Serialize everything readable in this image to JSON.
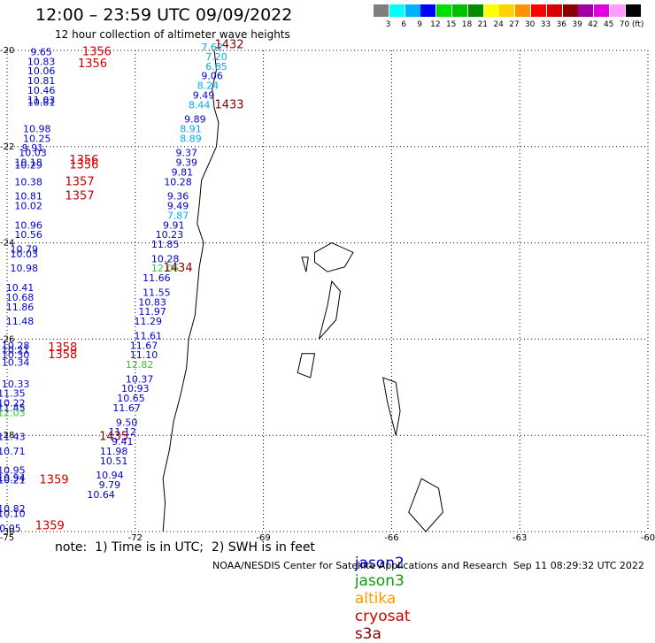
{
  "header": {
    "title": "12:00 – 23:59 UTC 09/09/2022",
    "subtitle": "12 hour collection of altimeter wave heights"
  },
  "legend": {
    "unit": "(ft)",
    "bins": [
      {
        "label": "3",
        "color": "#7f7f7f"
      },
      {
        "label": "6",
        "color": "#00ffff"
      },
      {
        "label": "9",
        "color": "#00b2ff"
      },
      {
        "label": "12",
        "color": "#0000ff"
      },
      {
        "label": "15",
        "color": "#00e000"
      },
      {
        "label": "18",
        "color": "#00c000"
      },
      {
        "label": "21",
        "color": "#008c00"
      },
      {
        "label": "24",
        "color": "#ffff00"
      },
      {
        "label": "27",
        "color": "#ffd200"
      },
      {
        "label": "30",
        "color": "#ff9400"
      },
      {
        "label": "33",
        "color": "#ff0000"
      },
      {
        "label": "36",
        "color": "#d80000"
      },
      {
        "label": "39",
        "color": "#8a0000"
      },
      {
        "label": "42",
        "color": "#a000a0"
      },
      {
        "label": "45",
        "color": "#e000e0"
      },
      {
        "label": "70",
        "color": "#ff9cff"
      },
      {
        "label": "",
        "color": "#000000"
      }
    ]
  },
  "map": {
    "lon_ticks": [
      "-75",
      "-72",
      "-69",
      "-66",
      "-63",
      "-60"
    ],
    "lat_ticks": [
      "-20",
      "-22",
      "-24",
      "-26",
      "-28",
      "-30"
    ],
    "extent": {
      "lon": [
        -75,
        -60
      ],
      "lat": [
        -30,
        -20
      ]
    },
    "grid": "dotted",
    "colors": {
      "jason2": "#0000cc",
      "jason3": "#119911",
      "altika": "#ff9900",
      "cryosat": "#cc0000",
      "s3a": "#880000",
      "light": "#00aaff",
      "green_light": "#33cc33"
    },
    "wave_labels": [
      {
        "text": "7.62",
        "lon": -70.2,
        "lat": -20.0,
        "c": "light"
      },
      {
        "text": "7.20",
        "lon": -70.1,
        "lat": -20.2,
        "c": "light"
      },
      {
        "text": "6.85",
        "lon": -70.1,
        "lat": -20.4,
        "c": "light"
      },
      {
        "text": "9.06",
        "lon": -70.2,
        "lat": -20.6,
        "c": "jason2"
      },
      {
        "text": "8.24",
        "lon": -70.3,
        "lat": -20.8,
        "c": "light"
      },
      {
        "text": "9.49",
        "lon": -70.4,
        "lat": -21.0,
        "c": "jason2"
      },
      {
        "text": "8.44",
        "lon": -70.5,
        "lat": -21.2,
        "c": "light"
      },
      {
        "text": "9.89",
        "lon": -70.6,
        "lat": -21.5,
        "c": "jason2"
      },
      {
        "text": "8.91",
        "lon": -70.7,
        "lat": -21.7,
        "c": "light"
      },
      {
        "text": "8.89",
        "lon": -70.7,
        "lat": -21.9,
        "c": "light"
      },
      {
        "text": "9.37",
        "lon": -70.8,
        "lat": -22.2,
        "c": "jason2"
      },
      {
        "text": "9.39",
        "lon": -70.8,
        "lat": -22.4,
        "c": "jason2"
      },
      {
        "text": "9.81",
        "lon": -70.9,
        "lat": -22.6,
        "c": "jason2"
      },
      {
        "text": "10.28",
        "lon": -71.0,
        "lat": -22.8,
        "c": "jason2"
      },
      {
        "text": "9.36",
        "lon": -71.0,
        "lat": -23.1,
        "c": "jason2"
      },
      {
        "text": "9.49",
        "lon": -71.0,
        "lat": -23.3,
        "c": "jason2"
      },
      {
        "text": "7.87",
        "lon": -71.0,
        "lat": -23.5,
        "c": "light"
      },
      {
        "text": "9.91",
        "lon": -71.1,
        "lat": -23.7,
        "c": "jason2"
      },
      {
        "text": "10.23",
        "lon": -71.2,
        "lat": -23.9,
        "c": "jason2"
      },
      {
        "text": "11.85",
        "lon": -71.3,
        "lat": -24.1,
        "c": "jason2"
      },
      {
        "text": "10.28",
        "lon": -71.3,
        "lat": -24.4,
        "c": "jason2"
      },
      {
        "text": "12.06",
        "lon": -71.3,
        "lat": -24.6,
        "c": "green_light"
      },
      {
        "text": "11.66",
        "lon": -71.5,
        "lat": -24.8,
        "c": "jason2"
      },
      {
        "text": "11.55",
        "lon": -71.5,
        "lat": -25.1,
        "c": "jason2"
      },
      {
        "text": "10.83",
        "lon": -71.6,
        "lat": -25.3,
        "c": "jason2"
      },
      {
        "text": "11.97",
        "lon": -71.6,
        "lat": -25.5,
        "c": "jason2"
      },
      {
        "text": "11.29",
        "lon": -71.7,
        "lat": -25.7,
        "c": "jason2"
      },
      {
        "text": "11.61",
        "lon": -71.7,
        "lat": -26.0,
        "c": "jason2"
      },
      {
        "text": "11.67",
        "lon": -71.8,
        "lat": -26.2,
        "c": "jason2"
      },
      {
        "text": "11.10",
        "lon": -71.8,
        "lat": -26.4,
        "c": "jason2"
      },
      {
        "text": "12.82",
        "lon": -71.9,
        "lat": -26.6,
        "c": "green_light"
      },
      {
        "text": "10.37",
        "lon": -71.9,
        "lat": -26.9,
        "c": "jason2"
      },
      {
        "text": "10.93",
        "lon": -72.0,
        "lat": -27.1,
        "c": "jason2"
      },
      {
        "text": "10.65",
        "lon": -72.1,
        "lat": -27.3,
        "c": "jason2"
      },
      {
        "text": "11.67",
        "lon": -72.2,
        "lat": -27.5,
        "c": "jason2"
      },
      {
        "text": "9.50",
        "lon": -72.2,
        "lat": -27.8,
        "c": "jason2"
      },
      {
        "text": "11.12",
        "lon": -72.3,
        "lat": -28.0,
        "c": "jason2"
      },
      {
        "text": "9.41",
        "lon": -72.3,
        "lat": -28.2,
        "c": "jason2"
      },
      {
        "text": "11.98",
        "lon": -72.5,
        "lat": -28.4,
        "c": "jason2"
      },
      {
        "text": "10.51",
        "lon": -72.5,
        "lat": -28.6,
        "c": "jason2"
      },
      {
        "text": "10.94",
        "lon": -72.6,
        "lat": -28.9,
        "c": "jason2"
      },
      {
        "text": "9.79",
        "lon": -72.6,
        "lat": -29.1,
        "c": "jason2"
      },
      {
        "text": "10.64",
        "lon": -72.8,
        "lat": -29.3,
        "c": "jason2"
      },
      {
        "text": "9.65",
        "lon": -74.2,
        "lat": -20.1,
        "c": "jason2"
      },
      {
        "text": "10.83",
        "lon": -74.2,
        "lat": -20.3,
        "c": "jason2"
      },
      {
        "text": "10.06",
        "lon": -74.2,
        "lat": -20.5,
        "c": "jason2"
      },
      {
        "text": "10.81",
        "lon": -74.2,
        "lat": -20.7,
        "c": "jason2"
      },
      {
        "text": "10.46",
        "lon": -74.2,
        "lat": -20.9,
        "c": "jason2"
      },
      {
        "text": "11.03",
        "lon": -74.2,
        "lat": -21.1,
        "c": "jason2"
      },
      {
        "text": "10.81",
        "lon": -74.2,
        "lat": -21.15,
        "c": "jason2"
      },
      {
        "text": "10.98",
        "lon": -74.3,
        "lat": -21.7,
        "c": "jason2"
      },
      {
        "text": "10.25",
        "lon": -74.3,
        "lat": -21.9,
        "c": "jason2"
      },
      {
        "text": "9.91",
        "lon": -74.4,
        "lat": -22.1,
        "c": "jason2"
      },
      {
        "text": "10.03",
        "lon": -74.4,
        "lat": -22.2,
        "c": "jason2"
      },
      {
        "text": "10.18",
        "lon": -74.5,
        "lat": -22.4,
        "c": "jason2"
      },
      {
        "text": "10.29",
        "lon": -74.5,
        "lat": -22.45,
        "c": "jason2"
      },
      {
        "text": "10.38",
        "lon": -74.5,
        "lat": -22.8,
        "c": "jason2"
      },
      {
        "text": "10.81",
        "lon": -74.5,
        "lat": -23.1,
        "c": "jason2"
      },
      {
        "text": "10.02",
        "lon": -74.5,
        "lat": -23.3,
        "c": "jason2"
      },
      {
        "text": "10.96",
        "lon": -74.5,
        "lat": -23.7,
        "c": "jason2"
      },
      {
        "text": "10.56",
        "lon": -74.5,
        "lat": -23.9,
        "c": "jason2"
      },
      {
        "text": "10.79",
        "lon": -74.6,
        "lat": -24.2,
        "c": "jason2"
      },
      {
        "text": "10.03",
        "lon": -74.6,
        "lat": -24.3,
        "c": "jason2"
      },
      {
        "text": "10.98",
        "lon": -74.6,
        "lat": -24.6,
        "c": "jason2"
      },
      {
        "text": "10.41",
        "lon": -74.7,
        "lat": -25.0,
        "c": "jason2"
      },
      {
        "text": "10.68",
        "lon": -74.7,
        "lat": -25.2,
        "c": "jason2"
      },
      {
        "text": "11.86",
        "lon": -74.7,
        "lat": -25.4,
        "c": "jason2"
      },
      {
        "text": "11.48",
        "lon": -74.7,
        "lat": -25.7,
        "c": "jason2"
      },
      {
        "text": "10.28",
        "lon": -74.8,
        "lat": -26.2,
        "c": "jason2"
      },
      {
        "text": "10.21",
        "lon": -74.8,
        "lat": -26.3,
        "c": "jason2"
      },
      {
        "text": "10.30",
        "lon": -74.8,
        "lat": -26.4,
        "c": "jason2"
      },
      {
        "text": "10.34",
        "lon": -74.8,
        "lat": -26.55,
        "c": "jason2"
      },
      {
        "text": "10.33",
        "lon": -74.8,
        "lat": -27.0,
        "c": "jason2"
      },
      {
        "text": "11.35",
        "lon": -74.9,
        "lat": -27.2,
        "c": "jason2"
      },
      {
        "text": "10.22",
        "lon": -74.9,
        "lat": -27.4,
        "c": "jason2"
      },
      {
        "text": "11.45",
        "lon": -74.9,
        "lat": -27.5,
        "c": "jason2"
      },
      {
        "text": "12.03",
        "lon": -74.9,
        "lat": -27.6,
        "c": "green_light"
      },
      {
        "text": "11.43",
        "lon": -74.9,
        "lat": -28.1,
        "c": "jason2"
      },
      {
        "text": "10.71",
        "lon": -74.9,
        "lat": -28.4,
        "c": "jason2"
      },
      {
        "text": "10.95",
        "lon": -74.9,
        "lat": -28.8,
        "c": "jason2"
      },
      {
        "text": "10.94",
        "lon": -74.9,
        "lat": -28.95,
        "c": "jason2"
      },
      {
        "text": "10.21",
        "lon": -74.9,
        "lat": -29.0,
        "c": "jason2"
      },
      {
        "text": "10.82",
        "lon": -74.9,
        "lat": -29.6,
        "c": "jason2"
      },
      {
        "text": "10.10",
        "lon": -74.9,
        "lat": -29.7,
        "c": "jason2"
      },
      {
        "text": "10.05",
        "lon": -75.0,
        "lat": -30.0,
        "c": "jason2"
      }
    ],
    "time_labels": [
      {
        "text": "1432",
        "lon": -69.8,
        "lat": -19.95,
        "c": "s3a"
      },
      {
        "text": "1356",
        "lon": -72.9,
        "lat": -20.1,
        "c": "cryosat"
      },
      {
        "text": "1356",
        "lon": -73.0,
        "lat": -20.35,
        "c": "cryosat"
      },
      {
        "text": "1433",
        "lon": -69.8,
        "lat": -21.2,
        "c": "s3a"
      },
      {
        "text": "1356",
        "lon": -73.2,
        "lat": -22.35,
        "c": "cryosat"
      },
      {
        "text": "1356",
        "lon": -73.2,
        "lat": -22.45,
        "c": "cryosat"
      },
      {
        "text": "1357",
        "lon": -73.3,
        "lat": -22.8,
        "c": "cryosat"
      },
      {
        "text": "1357",
        "lon": -73.3,
        "lat": -23.1,
        "c": "cryosat"
      },
      {
        "text": "1434",
        "lon": -71.0,
        "lat": -24.6,
        "c": "s3a"
      },
      {
        "text": "1358",
        "lon": -73.7,
        "lat": -26.25,
        "c": "cryosat"
      },
      {
        "text": "1358",
        "lon": -73.7,
        "lat": -26.4,
        "c": "cryosat"
      },
      {
        "text": "1435",
        "lon": -72.5,
        "lat": -28.1,
        "c": "s3a"
      },
      {
        "text": "1359",
        "lon": -73.9,
        "lat": -29.0,
        "c": "cryosat"
      },
      {
        "text": "1359",
        "lon": -74.0,
        "lat": -29.95,
        "c": "cryosat"
      }
    ]
  },
  "footer": {
    "note": "note:  1) Time is in UTC;  2) SWH is in feet",
    "satellites": [
      {
        "name": "jason2",
        "color": "#0000cc"
      },
      {
        "name": "jason3",
        "color": "#119911"
      },
      {
        "name": "altika",
        "color": "#ff9900"
      },
      {
        "name": "cryosat",
        "color": "#cc0000"
      },
      {
        "name": "s3a",
        "color": "#880000"
      }
    ],
    "credit": "NOAA/NESDIS Center for Satellite Applications and Research",
    "timestamp": "Sep 11 08:29:32 UTC 2022"
  }
}
